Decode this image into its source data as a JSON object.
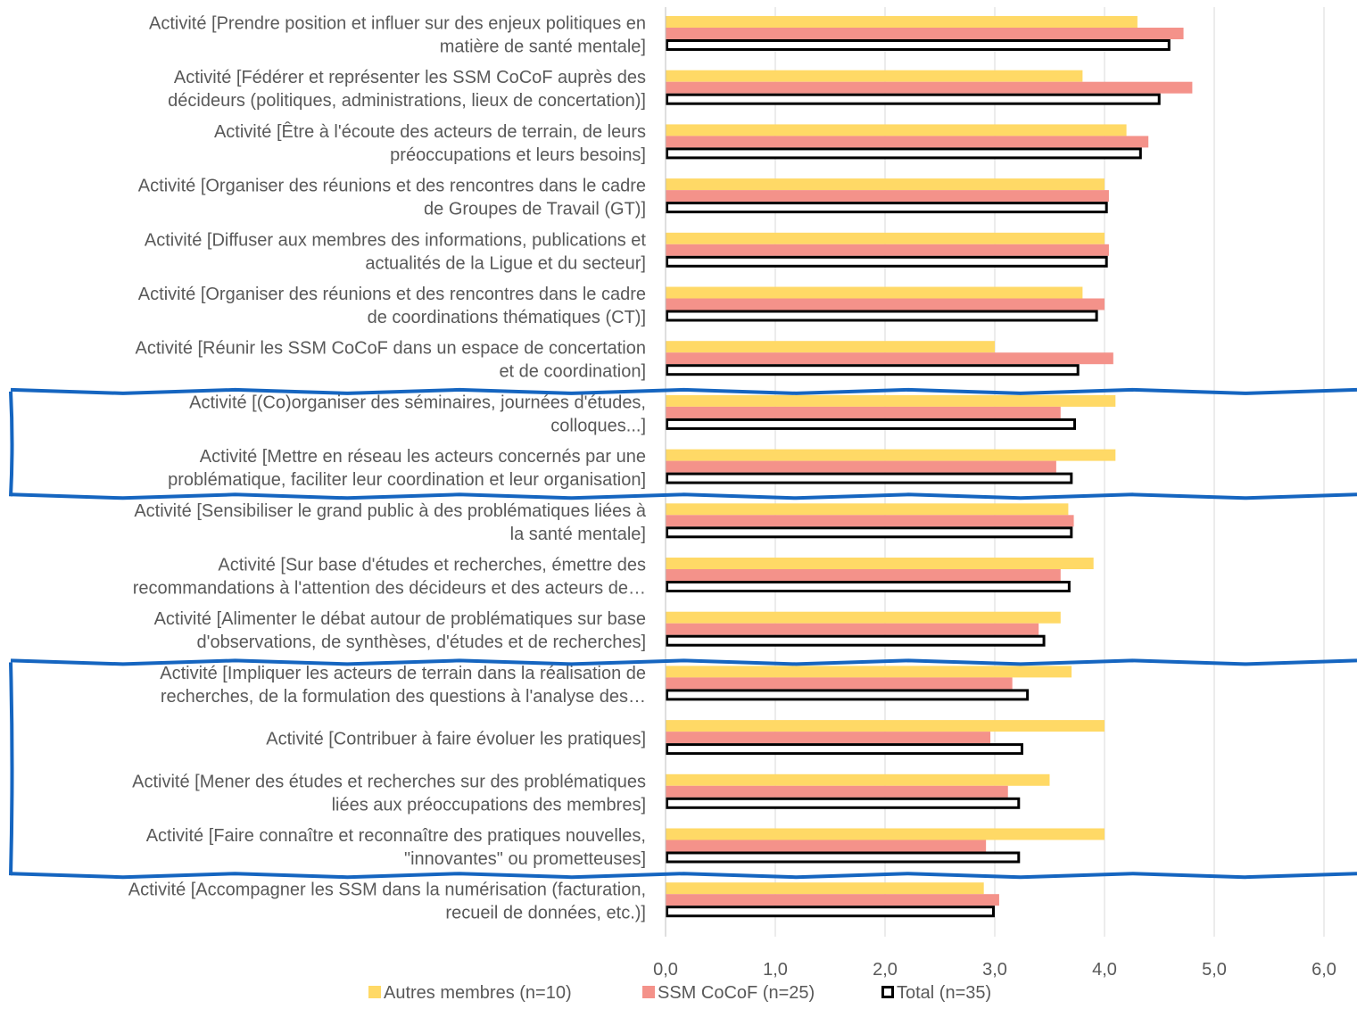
{
  "chart_data": {
    "type": "bar",
    "orientation": "horizontal",
    "categories": [
      [
        "Activité [Prendre position et influer sur des enjeux politiques en",
        "matière de santé mentale]"
      ],
      [
        "Activité [Fédérer et représenter les SSM CoCoF auprès des",
        "décideurs (politiques, administrations, lieux de concertation)]"
      ],
      [
        "Activité [Être à l'écoute des acteurs de terrain, de leurs",
        "préoccupations et leurs besoins]"
      ],
      [
        "Activité [Organiser des réunions et des rencontres dans le cadre",
        "de Groupes de Travail (GT)]"
      ],
      [
        "Activité [Diffuser aux membres des informations, publications et",
        "actualités de la Ligue et du secteur]"
      ],
      [
        "Activité [Organiser des réunions et des rencontres dans le cadre",
        "de coordinations thématiques (CT)]"
      ],
      [
        "Activité [Réunir les SSM CoCoF dans un espace de concertation",
        "et de coordination]"
      ],
      [
        "Activité [(Co)organiser des séminaires, journées d'études,",
        "colloques...]"
      ],
      [
        "Activité [Mettre en réseau les acteurs concernés par une",
        "problématique, faciliter leur coordination et leur organisation]"
      ],
      [
        "Activité [Sensibiliser le grand public à des problématiques liées à",
        "la santé mentale]"
      ],
      [
        "Activité [Sur base d'études et recherches, émettre des",
        "recommandations à l'attention des décideurs et des acteurs de…"
      ],
      [
        "Activité [Alimenter le débat autour de problématiques sur base",
        "d'observations, de synthèses, d'études et de recherches]"
      ],
      [
        "Activité [Impliquer les acteurs de terrain dans la réalisation de",
        "recherches, de la formulation des questions à l'analyse des…"
      ],
      [
        "Activité [Contribuer à faire évoluer les pratiques]"
      ],
      [
        "Activité [Mener des études et recherches sur des problématiques",
        "liées aux préoccupations des membres]"
      ],
      [
        "Activité [Faire connaître et reconnaître des pratiques nouvelles,",
        "\"innovantes\" ou prometteuses]"
      ],
      [
        "Activité [Accompagner les SSM dans la numérisation (facturation,",
        "recueil de données, etc.)]"
      ]
    ],
    "series": [
      {
        "name": "Autres membres (n=10)",
        "color": "#FFD966",
        "values": [
          4.3,
          3.8,
          4.2,
          4.0,
          4.0,
          3.8,
          3.0,
          4.1,
          4.1,
          3.67,
          3.9,
          3.6,
          3.7,
          4.0,
          3.5,
          4.0,
          2.9
        ]
      },
      {
        "name": "SSM CoCoF (n=25)",
        "color": "#F4928A",
        "values": [
          4.72,
          4.8,
          4.4,
          4.04,
          4.04,
          4.0,
          4.08,
          3.6,
          3.56,
          3.72,
          3.6,
          3.4,
          3.16,
          2.96,
          3.12,
          2.92,
          3.04
        ]
      },
      {
        "name": "Total (n=35)",
        "color": "#FFFFFF",
        "outline": "#000000",
        "values": [
          4.6,
          4.51,
          4.34,
          4.03,
          4.03,
          3.94,
          3.77,
          3.74,
          3.71,
          3.71,
          3.69,
          3.46,
          3.31,
          3.26,
          3.23,
          3.23,
          3.0
        ]
      }
    ],
    "xlim": [
      0,
      6.0
    ],
    "xticks": [
      "0,0",
      "1,0",
      "2,0",
      "3,0",
      "4,0",
      "5,0",
      "6,0"
    ],
    "grid": true,
    "legend_position": "bottom",
    "annotations": [
      {
        "type": "highlight-box",
        "color": "#1565C0",
        "rows": [
          7,
          8
        ]
      },
      {
        "type": "highlight-box",
        "color": "#1565C0",
        "rows": [
          12,
          15
        ]
      }
    ]
  }
}
